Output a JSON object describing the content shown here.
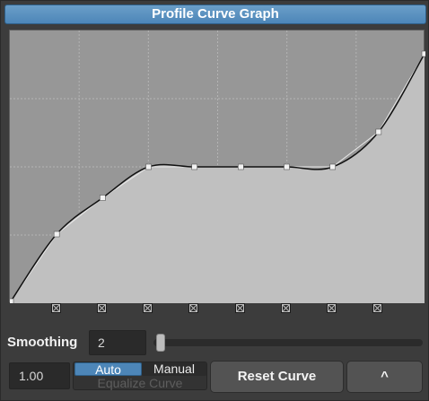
{
  "panel": {
    "title": "Profile Curve Graph"
  },
  "curve": {
    "control_points": [
      [
        0.0,
        0.0
      ],
      [
        0.111,
        0.25
      ],
      [
        0.222,
        0.385
      ],
      [
        0.333,
        0.5
      ],
      [
        0.444,
        0.5
      ],
      [
        0.556,
        0.5
      ],
      [
        0.667,
        0.5
      ],
      [
        0.778,
        0.5
      ],
      [
        0.889,
        0.63
      ],
      [
        1.0,
        0.92
      ]
    ],
    "point_toggles": [
      true,
      true,
      true,
      true,
      true,
      true,
      true,
      true
    ],
    "colors": {
      "fill_below": "#c0c0c0",
      "fill_above": "#979797",
      "line": "#111111",
      "grid": "#b4b4b4",
      "control": "#f2f2f2"
    }
  },
  "smoothing": {
    "label": "Smoothing",
    "value": "2",
    "slider_level": 0.01
  },
  "value_field": "1.00",
  "mode": {
    "auto_label": "Auto",
    "manual_label": "Manual",
    "selected": "Auto",
    "equalize_label": "Equalize Curve"
  },
  "buttons": {
    "reset": "Reset Curve",
    "caret": "^"
  }
}
